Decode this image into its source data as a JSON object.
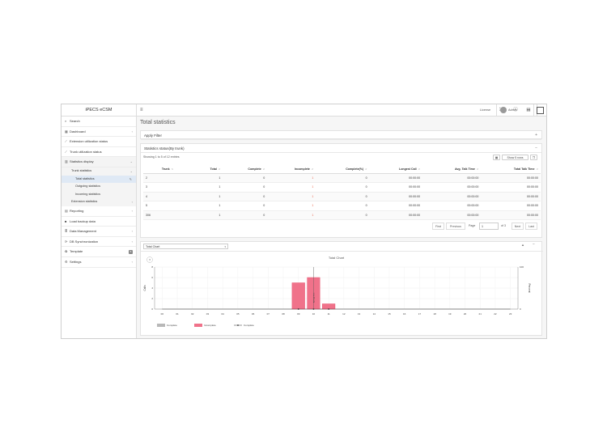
{
  "app": {
    "brand": "iPECS eCSM"
  },
  "sidebar": {
    "items": [
      {
        "icon": "search-icon",
        "glyph": "⌕",
        "label": "Search",
        "arrow": ""
      },
      {
        "icon": "dashboard-icon",
        "glyph": "▦",
        "label": "Dashboard",
        "arrow": "‹"
      },
      {
        "icon": "chart-line-icon",
        "glyph": "⟋",
        "label": "Extension utilization status",
        "arrow": ""
      },
      {
        "icon": "chart-line-icon",
        "glyph": "⟋",
        "label": "Trunk utilization status",
        "arrow": ""
      },
      {
        "icon": "bar-chart-icon",
        "glyph": "▥",
        "label": "Statistics display",
        "arrow": "⌄"
      }
    ],
    "sub": {
      "trunk": "Trunk statistics",
      "total": "Total statistics",
      "outgoing": "Outgoing statistics",
      "incoming": "Incoming statistics",
      "extension": "Extension statistics"
    },
    "items2": [
      {
        "icon": "report-icon",
        "glyph": "▤",
        "label": "Reporting",
        "arrow": "‹"
      },
      {
        "icon": "folder-icon",
        "glyph": "■",
        "label": "Load backup data",
        "arrow": ""
      },
      {
        "icon": "database-icon",
        "glyph": "≣",
        "label": "Data Management",
        "arrow": "‹"
      },
      {
        "icon": "sync-icon",
        "glyph": "⟳",
        "label": "DB Synchronization",
        "arrow": "‹"
      },
      {
        "icon": "template-icon",
        "glyph": "✿",
        "label": "Template",
        "arrow": "",
        "badge": "5"
      },
      {
        "icon": "gear-icon",
        "glyph": "⚙",
        "label": "Settings",
        "arrow": "‹"
      }
    ]
  },
  "topbar": {
    "license": "License",
    "user": "Admin"
  },
  "page": {
    "title": "Total statistics"
  },
  "filter": {
    "label": "Apply Filter",
    "toggle": "+"
  },
  "status": {
    "label": "Statistics status(By trunk)",
    "toggle": "−",
    "showing": "Showing 1 to 5 of 12 entries",
    "show_rows": "Show 5 rows"
  },
  "table": {
    "headers": [
      "Trunk",
      "Total",
      "Complete",
      "Incomplete",
      "Complete(%)",
      "Longest Call",
      "Avg. Talk Time",
      "Total Talk Time"
    ],
    "rows": [
      [
        "2",
        "1",
        "0",
        "1",
        "0",
        "00:00:00",
        "00:00:00",
        "00:00:00"
      ],
      [
        "3",
        "1",
        "0",
        "1",
        "0",
        "00:00:00",
        "00:00:00",
        "00:00:00"
      ],
      [
        "4",
        "1",
        "0",
        "1",
        "0",
        "00:00:00",
        "00:00:00",
        "00:00:00"
      ],
      [
        "5",
        "1",
        "0",
        "1",
        "0",
        "00:00:00",
        "00:00:00",
        "00:00:00"
      ],
      [
        "306",
        "1",
        "0",
        "1",
        "0",
        "00:00:00",
        "00:00:00",
        "00:00:00"
      ]
    ]
  },
  "pager": {
    "first": "First",
    "previous": "Previous",
    "page_label": "Page",
    "page": "1",
    "of": "of 3",
    "next": "Next",
    "last": "Last"
  },
  "chart_panel": {
    "select": "Total Chart",
    "help": "?"
  },
  "chart_data": {
    "type": "bar",
    "title": "Total Chart",
    "xlabel": "",
    "ylabel": "Calls",
    "y2label": "Percent",
    "categories": [
      "00",
      "01",
      "02",
      "03",
      "04",
      "05",
      "06",
      "07",
      "08",
      "09",
      "10",
      "11",
      "12",
      "13",
      "14",
      "15",
      "16",
      "17",
      "18",
      "19",
      "20",
      "21",
      "22",
      "23"
    ],
    "yticks": [
      "0",
      "2",
      "4",
      "6",
      "8"
    ],
    "y2ticks": [
      "0",
      "100"
    ],
    "ylim": [
      0,
      8
    ],
    "y2lim": [
      0,
      100
    ],
    "series": [
      {
        "name": "Complete",
        "type": "bar",
        "color": "#b8b8b8",
        "values": [
          0,
          0,
          0,
          0,
          0,
          0,
          0,
          0,
          0,
          0,
          0,
          0,
          0,
          0,
          0,
          0,
          0,
          0,
          0,
          0,
          0,
          0,
          0,
          0
        ]
      },
      {
        "name": "Incomplete",
        "type": "bar",
        "color": "#f0728a",
        "values": [
          0,
          0,
          0,
          0,
          0,
          0,
          0,
          0,
          0,
          5,
          6,
          1,
          0,
          0,
          0,
          0,
          0,
          0,
          0,
          0,
          0,
          0,
          0,
          0
        ]
      },
      {
        "name": "Complete",
        "type": "line",
        "color": "#333333",
        "values": [
          0,
          0,
          0,
          0,
          0,
          0,
          0,
          0,
          0,
          0,
          0,
          0,
          0,
          0,
          0,
          0,
          0,
          0,
          0,
          0,
          0,
          0,
          0,
          0
        ]
      }
    ],
    "annotation": "Average Time",
    "grid": true,
    "legend": "bottom-left"
  }
}
